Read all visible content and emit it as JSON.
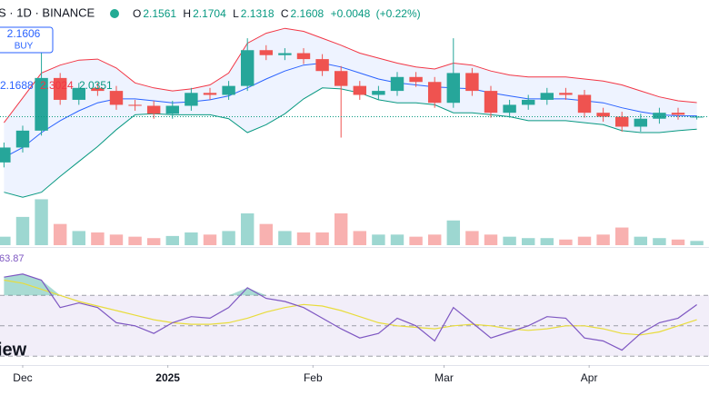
{
  "header": {
    "symbol_line": "S · 1D · BINANCE",
    "ohlc_labels": [
      "O",
      "H",
      "L",
      "C"
    ],
    "change": "+0.0048",
    "change_pct": "(+0.22%)",
    "buy_price": "2.1606",
    "buy_label": "BUY",
    "watermark": "iew"
  },
  "chart_data": {
    "type": "candlestick",
    "x": [
      -4,
      0,
      4,
      8,
      12,
      16,
      20,
      24,
      28,
      32,
      36,
      40,
      44,
      48,
      52,
      56,
      60,
      64,
      68,
      72,
      76,
      80,
      84,
      88,
      92,
      96,
      100,
      104,
      108,
      112,
      116,
      120,
      124,
      128,
      132,
      136,
      140,
      144
    ],
    "xlim": [
      -4.85,
      146.6
    ],
    "xticks": [
      {
        "value": 0,
        "label": "Dec"
      },
      {
        "value": 31,
        "label": "2025"
      },
      {
        "value": 62,
        "label": "Feb"
      },
      {
        "value": 90,
        "label": "Mar"
      },
      {
        "value": 121,
        "label": "Apr"
      }
    ],
    "ylim": [
      0.867,
      3.335
    ],
    "open": [
      1.7,
      1.85,
      2.02,
      2.55,
      2.33,
      2.45,
      2.42,
      2.28,
      2.27,
      2.19,
      2.27,
      2.4,
      2.38,
      2.47,
      2.83,
      2.78,
      2.8,
      2.74,
      2.62,
      2.47,
      2.38,
      2.42,
      2.56,
      2.51,
      2.3,
      2.6,
      2.42,
      2.2,
      2.28,
      2.33,
      2.4,
      2.38,
      2.2,
      2.16,
      2.06,
      2.14,
      2.2,
      2.1561
    ],
    "high": [
      1.9,
      2.07,
      2.9,
      2.6,
      2.5,
      2.5,
      2.47,
      2.33,
      2.32,
      2.32,
      2.45,
      2.45,
      2.52,
      2.95,
      2.88,
      2.85,
      2.85,
      2.79,
      2.67,
      2.52,
      2.47,
      2.61,
      2.61,
      2.56,
      2.95,
      2.65,
      2.47,
      2.33,
      2.38,
      2.45,
      2.45,
      2.43,
      2.25,
      2.21,
      2.19,
      2.25,
      2.25,
      2.1704
    ],
    "low": [
      1.65,
      1.8,
      1.97,
      2.28,
      2.28,
      2.37,
      2.23,
      2.22,
      2.14,
      2.14,
      2.22,
      2.33,
      2.33,
      2.42,
      2.73,
      2.73,
      2.69,
      2.57,
      1.95,
      2.33,
      2.33,
      2.37,
      2.46,
      2.25,
      2.25,
      2.37,
      2.15,
      2.15,
      2.23,
      2.28,
      2.33,
      2.15,
      2.11,
      2.01,
      2.01,
      2.09,
      2.13,
      2.1318
    ],
    "close": [
      1.85,
      2.02,
      2.55,
      2.33,
      2.45,
      2.42,
      2.28,
      2.27,
      2.19,
      2.27,
      2.4,
      2.38,
      2.47,
      2.83,
      2.78,
      2.8,
      2.74,
      2.62,
      2.47,
      2.38,
      2.42,
      2.56,
      2.51,
      2.3,
      2.6,
      2.42,
      2.2,
      2.28,
      2.33,
      2.4,
      2.38,
      2.2,
      2.16,
      2.06,
      2.14,
      2.2,
      2.18,
      2.1608
    ],
    "up_color": "#26a69a",
    "down_color": "#ef5350",
    "bands": {
      "upper": {
        "color": "#f23645",
        "values": [
          2.1,
          2.35,
          2.6,
          2.68,
          2.73,
          2.74,
          2.65,
          2.5,
          2.45,
          2.42,
          2.44,
          2.48,
          2.6,
          2.9,
          3.0,
          3.05,
          3.02,
          2.95,
          2.88,
          2.8,
          2.75,
          2.7,
          2.66,
          2.64,
          2.7,
          2.68,
          2.62,
          2.58,
          2.56,
          2.56,
          2.56,
          2.54,
          2.52,
          2.48,
          2.42,
          2.36,
          2.32,
          2.3024
        ]
      },
      "basis": {
        "color": "#2962ff",
        "values": [
          1.75,
          1.85,
          2.0,
          2.12,
          2.22,
          2.3,
          2.34,
          2.34,
          2.32,
          2.3,
          2.31,
          2.33,
          2.37,
          2.45,
          2.54,
          2.62,
          2.68,
          2.7,
          2.66,
          2.6,
          2.54,
          2.5,
          2.48,
          2.46,
          2.45,
          2.44,
          2.4,
          2.37,
          2.34,
          2.34,
          2.34,
          2.32,
          2.3,
          2.25,
          2.21,
          2.18,
          2.17,
          2.1688
        ]
      },
      "lower": {
        "color": "#089981",
        "values": [
          1.4,
          1.35,
          1.4,
          1.56,
          1.71,
          1.86,
          2.03,
          2.18,
          2.19,
          2.18,
          2.18,
          2.18,
          2.14,
          2.0,
          2.08,
          2.19,
          2.34,
          2.45,
          2.44,
          2.4,
          2.33,
          2.3,
          2.3,
          2.28,
          2.2,
          2.2,
          2.18,
          2.16,
          2.12,
          2.12,
          2.12,
          2.1,
          2.08,
          2.02,
          2.0,
          2.0,
          2.02,
          2.0351
        ]
      },
      "fill": "#2962ff"
    },
    "volume": {
      "vlim": [
        0,
        9
      ],
      "values": [
        1.2,
        4.0,
        6.5,
        3.0,
        2.0,
        1.8,
        1.5,
        1.2,
        1.0,
        1.3,
        1.8,
        1.5,
        2.0,
        4.5,
        3.0,
        2.0,
        1.8,
        1.8,
        4.5,
        2.0,
        1.5,
        1.5,
        1.2,
        1.5,
        3.5,
        2.0,
        1.5,
        1.2,
        1.0,
        1.0,
        0.8,
        1.2,
        1.5,
        2.5,
        1.2,
        1.0,
        0.8,
        0.6
      ]
    },
    "rsi": {
      "ylim": [
        25.4,
        100
      ],
      "levels": [
        70,
        50,
        30
      ],
      "color": "#7e57c2",
      "ma_color": "#e8dc3c",
      "values": [
        82,
        84,
        80,
        62,
        65,
        62,
        52,
        50,
        45,
        52,
        56,
        55,
        62,
        75,
        68,
        66,
        62,
        55,
        48,
        42,
        45,
        55,
        50,
        40,
        62,
        52,
        42,
        46,
        50,
        56,
        55,
        42,
        40,
        34,
        45,
        52,
        55,
        63.87
      ],
      "ma": [
        80,
        78,
        74,
        70,
        66,
        63,
        60,
        57,
        54,
        52,
        51,
        51,
        52,
        55,
        59,
        62,
        64,
        63,
        60,
        56,
        52,
        50,
        49,
        48,
        50,
        51,
        50,
        48,
        47,
        48,
        50,
        50,
        48,
        45,
        44,
        46,
        50,
        54
      ]
    }
  }
}
